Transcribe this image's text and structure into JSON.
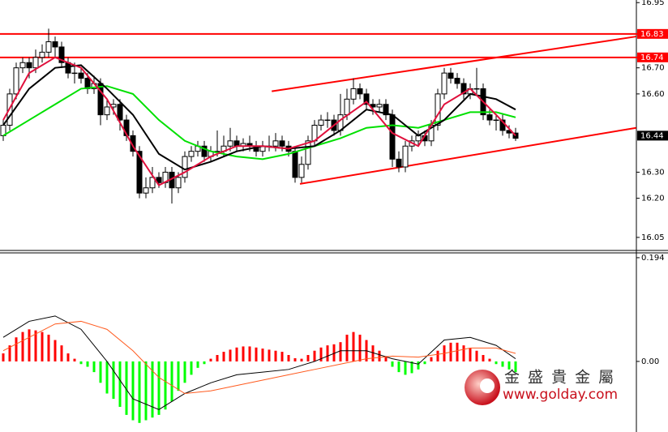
{
  "chart_data": [
    {
      "type": "candlestick",
      "xlim": [
        -0.5,
        97.625
      ],
      "ylim": [
        16.0,
        16.96
      ],
      "yticks": [
        16.95,
        {
          "value": 16.7,
          "label": "16.70"
        },
        {
          "value": 16.6,
          "label": "16.60"
        },
        {
          "value": 16.3,
          "label": "16.30"
        },
        {
          "value": 16.2,
          "label": "16.20"
        },
        16.05
      ],
      "levels": [
        {
          "value": 16.83,
          "color": "#ff0000"
        },
        {
          "value": 16.74,
          "color": "#ff0000"
        }
      ],
      "current_price": 16.44,
      "candles": [
        [
          16.44,
          16.5,
          16.42,
          16.48
        ],
        [
          16.48,
          16.62,
          16.46,
          16.6
        ],
        [
          16.6,
          16.72,
          16.58,
          16.7
        ],
        [
          16.7,
          16.74,
          16.68,
          16.72
        ],
        [
          16.72,
          16.74,
          16.66,
          16.7
        ],
        [
          16.7,
          16.77,
          16.68,
          16.74
        ],
        [
          16.74,
          16.79,
          16.72,
          16.76
        ],
        [
          16.76,
          16.85,
          16.74,
          16.8
        ],
        [
          16.8,
          16.82,
          16.74,
          16.78
        ],
        [
          16.78,
          16.8,
          16.7,
          16.72
        ],
        [
          16.72,
          16.74,
          16.66,
          16.68
        ],
        [
          16.68,
          16.72,
          16.64,
          16.68
        ],
        [
          16.68,
          16.7,
          16.64,
          16.66
        ],
        [
          16.66,
          16.68,
          16.6,
          16.62
        ],
        [
          16.62,
          16.67,
          16.6,
          16.64
        ],
        [
          16.64,
          16.66,
          16.48,
          16.52
        ],
        [
          16.52,
          16.58,
          16.5,
          16.55
        ],
        [
          16.55,
          16.58,
          16.52,
          16.56
        ],
        [
          16.56,
          16.58,
          16.46,
          16.5
        ],
        [
          16.5,
          16.52,
          16.42,
          16.44
        ],
        [
          16.44,
          16.46,
          16.36,
          16.38
        ],
        [
          16.38,
          16.4,
          16.2,
          16.22
        ],
        [
          16.22,
          16.28,
          16.2,
          16.24
        ],
        [
          16.24,
          16.32,
          16.22,
          16.28
        ],
        [
          16.28,
          16.3,
          16.24,
          16.26
        ],
        [
          16.26,
          16.32,
          16.24,
          16.3
        ],
        [
          16.3,
          16.32,
          16.18,
          16.24
        ],
        [
          16.24,
          16.3,
          16.22,
          16.28
        ],
        [
          16.28,
          16.38,
          16.26,
          16.36
        ],
        [
          16.36,
          16.4,
          16.34,
          16.38
        ],
        [
          16.38,
          16.42,
          16.36,
          16.4
        ],
        [
          16.4,
          16.42,
          16.34,
          16.36
        ],
        [
          16.36,
          16.4,
          16.34,
          16.38
        ],
        [
          16.38,
          16.46,
          16.36,
          16.38
        ],
        [
          16.38,
          16.44,
          16.36,
          16.4
        ],
        [
          16.4,
          16.47,
          16.38,
          16.42
        ],
        [
          16.42,
          16.44,
          16.38,
          16.4
        ],
        [
          16.4,
          16.43,
          16.38,
          16.41
        ],
        [
          16.41,
          16.44,
          16.38,
          16.4
        ],
        [
          16.4,
          16.42,
          16.36,
          16.38
        ],
        [
          16.38,
          16.42,
          16.36,
          16.4
        ],
        [
          16.4,
          16.44,
          16.38,
          16.4
        ],
        [
          16.4,
          16.45,
          16.38,
          16.42
        ],
        [
          16.42,
          16.44,
          16.38,
          16.4
        ],
        [
          16.4,
          16.42,
          16.36,
          16.38
        ],
        [
          16.38,
          16.4,
          16.26,
          16.28
        ],
        [
          16.28,
          16.36,
          16.26,
          16.33
        ],
        [
          16.33,
          16.44,
          16.31,
          16.42
        ],
        [
          16.42,
          16.5,
          16.4,
          16.48
        ],
        [
          16.48,
          16.52,
          16.46,
          16.5
        ],
        [
          16.5,
          16.53,
          16.47,
          16.5
        ],
        [
          16.5,
          16.52,
          16.44,
          16.46
        ],
        [
          16.46,
          16.6,
          16.44,
          16.52
        ],
        [
          16.52,
          16.62,
          16.5,
          16.58
        ],
        [
          16.58,
          16.66,
          16.56,
          16.62
        ],
        [
          16.62,
          16.64,
          16.58,
          16.6
        ],
        [
          16.6,
          16.62,
          16.54,
          16.56
        ],
        [
          16.56,
          16.58,
          16.52,
          16.55
        ],
        [
          16.55,
          16.58,
          16.53,
          16.56
        ],
        [
          16.56,
          16.58,
          16.5,
          16.52
        ],
        [
          16.52,
          16.54,
          16.32,
          16.35
        ],
        [
          16.35,
          16.38,
          16.3,
          16.32
        ],
        [
          16.32,
          16.42,
          16.3,
          16.4
        ],
        [
          16.4,
          16.44,
          16.38,
          16.42
        ],
        [
          16.42,
          16.46,
          16.4,
          16.44
        ],
        [
          16.44,
          16.46,
          16.4,
          16.42
        ],
        [
          16.42,
          16.5,
          16.4,
          16.48
        ],
        [
          16.48,
          16.62,
          16.46,
          16.6
        ],
        [
          16.6,
          16.7,
          16.58,
          16.68
        ],
        [
          16.68,
          16.7,
          16.64,
          16.66
        ],
        [
          16.66,
          16.68,
          16.62,
          16.64
        ],
        [
          16.64,
          16.66,
          16.58,
          16.6
        ],
        [
          16.6,
          16.64,
          16.58,
          16.62
        ],
        [
          16.62,
          16.7,
          16.6,
          16.62
        ],
        [
          16.62,
          16.64,
          16.5,
          16.52
        ],
        [
          16.52,
          16.54,
          16.48,
          16.5
        ],
        [
          16.5,
          16.52,
          16.46,
          16.5
        ],
        [
          16.5,
          16.52,
          16.44,
          16.46
        ],
        [
          16.46,
          16.48,
          16.43,
          16.45
        ],
        [
          16.45,
          16.47,
          16.42,
          16.43
        ]
      ],
      "series": [
        {
          "color": "#00e000",
          "x": [
            0,
            4,
            8,
            12,
            16,
            20,
            24,
            28,
            32,
            36,
            40,
            44,
            48,
            52,
            56,
            60,
            64,
            68,
            72,
            76,
            79
          ],
          "values": [
            16.44,
            16.5,
            16.56,
            16.62,
            16.63,
            16.6,
            16.5,
            16.42,
            16.38,
            16.36,
            16.35,
            16.37,
            16.4,
            16.43,
            16.47,
            16.48,
            16.47,
            16.5,
            16.53,
            16.53,
            16.51
          ]
        },
        {
          "color": "#000000",
          "x": [
            0,
            4,
            8,
            12,
            16,
            20,
            24,
            28,
            32,
            36,
            40,
            44,
            48,
            52,
            56,
            60,
            64,
            68,
            72,
            76,
            79
          ],
          "values": [
            16.48,
            16.62,
            16.7,
            16.71,
            16.62,
            16.52,
            16.37,
            16.31,
            16.34,
            16.38,
            16.4,
            16.39,
            16.4,
            16.46,
            16.54,
            16.52,
            16.44,
            16.5,
            16.6,
            16.58,
            16.54
          ]
        },
        {
          "color": "#e0103c",
          "x": [
            0,
            4,
            8,
            12,
            16,
            20,
            24,
            28,
            32,
            36,
            40,
            44,
            48,
            52,
            56,
            60,
            64,
            68,
            72,
            76,
            79
          ],
          "values": [
            16.5,
            16.68,
            16.74,
            16.7,
            16.58,
            16.4,
            16.25,
            16.3,
            16.36,
            16.4,
            16.4,
            16.39,
            16.42,
            16.5,
            16.57,
            16.45,
            16.4,
            16.56,
            16.62,
            16.52,
            16.44
          ]
        }
      ],
      "trendlines": [
        {
          "color": "#ff0000",
          "x": [
            41.4,
            97.6
          ],
          "values": [
            16.61,
            16.82
          ]
        },
        {
          "color": "#ff0000",
          "x": [
            45.75,
            97.6
          ],
          "values": [
            16.255,
            16.47
          ]
        }
      ]
    },
    {
      "type": "macd",
      "xlim": [
        -0.5,
        97.625
      ],
      "ylim": [
        -0.132,
        0.203
      ],
      "yticks": [
        0.194,
        {
          "value": 0,
          "label": "0.00"
        }
      ],
      "up_color": "#ff0000",
      "down_color": "#00ff00",
      "histogram": [
        0.015,
        0.03,
        0.045,
        0.055,
        0.06,
        0.058,
        0.055,
        0.05,
        0.04,
        0.03,
        0.015,
        0.005,
        -0.005,
        -0.01,
        -0.02,
        -0.04,
        -0.06,
        -0.07,
        -0.085,
        -0.1,
        -0.11,
        -0.115,
        -0.11,
        -0.105,
        -0.1,
        -0.09,
        -0.075,
        -0.055,
        -0.04,
        -0.025,
        -0.012,
        -0.005,
        0.005,
        0.012,
        0.018,
        0.022,
        0.026,
        0.028,
        0.028,
        0.026,
        0.024,
        0.022,
        0.02,
        0.018,
        0.012,
        0.006,
        0.005,
        0.012,
        0.02,
        0.026,
        0.03,
        0.032,
        0.036,
        0.05,
        0.055,
        0.05,
        0.04,
        0.03,
        0.02,
        0.01,
        -0.01,
        -0.02,
        -0.025,
        -0.022,
        -0.015,
        -0.005,
        0.008,
        0.02,
        0.03,
        0.035,
        0.035,
        0.03,
        0.025,
        0.02,
        0.012,
        0.005,
        -0.005,
        -0.01,
        -0.015,
        -0.02
      ],
      "series": [
        {
          "color": "#000000",
          "x": [
            0,
            4,
            8,
            12,
            16,
            20,
            24,
            28,
            32,
            36,
            40,
            44,
            48,
            52,
            56,
            60,
            64,
            68,
            72,
            76,
            79
          ],
          "values": [
            0.045,
            0.075,
            0.085,
            0.06,
            0.0,
            -0.07,
            -0.09,
            -0.06,
            -0.04,
            -0.025,
            -0.02,
            -0.015,
            0.0,
            0.02,
            0.02,
            0.005,
            -0.005,
            0.04,
            0.045,
            0.03,
            0.005
          ]
        },
        {
          "color": "#ff5a1e",
          "x": [
            0,
            4,
            8,
            12,
            16,
            20,
            24,
            28,
            32,
            36,
            40,
            44,
            48,
            52,
            56,
            60,
            64,
            68,
            72,
            76,
            79
          ],
          "values": [
            0.02,
            0.045,
            0.07,
            0.075,
            0.06,
            0.02,
            -0.03,
            -0.06,
            -0.055,
            -0.045,
            -0.035,
            -0.025,
            -0.015,
            -0.005,
            0.005,
            0.01,
            0.008,
            0.015,
            0.025,
            0.025,
            0.015
          ]
        }
      ]
    }
  ],
  "watermark": {
    "name": "金 盛 貴 金 屬",
    "url": "www.golday.com"
  }
}
